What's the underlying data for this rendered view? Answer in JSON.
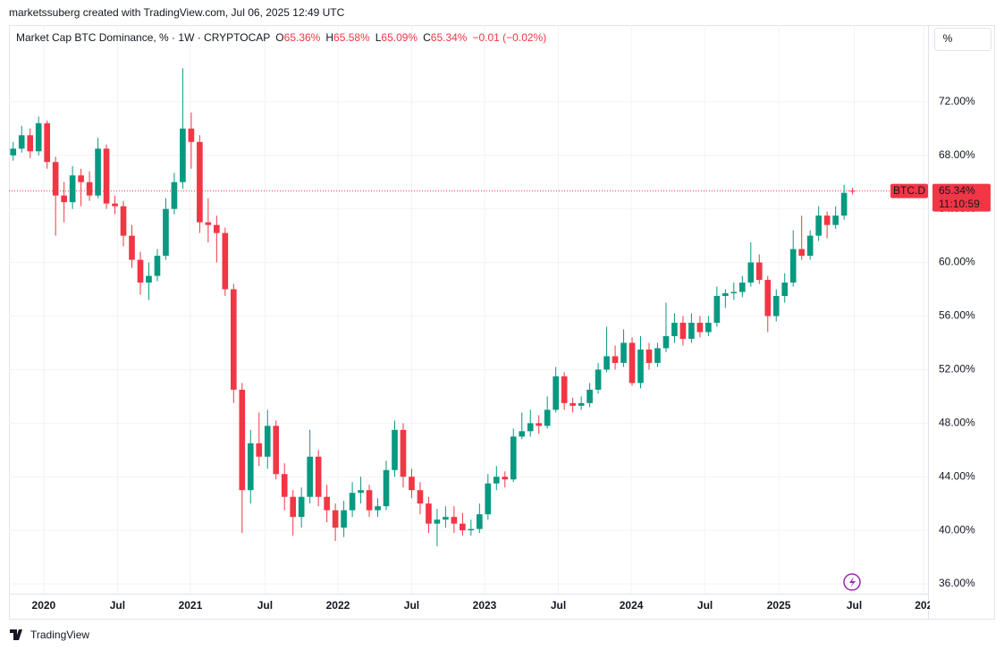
{
  "chart_data": {
    "type": "candlestick",
    "credit": "marketssuberg created with TradingView.com, Jul 06, 2025 12:49 UTC",
    "title": "Market Cap BTC Dominance, % · 1W · CRYPTOCAP",
    "ohlc_legend": {
      "open_label": "O",
      "open": "65.36%",
      "high_label": "H",
      "high": "65.58%",
      "low_label": "L",
      "low": "65.09%",
      "close_label": "C",
      "close": "65.34%",
      "change": "−0.01 (−0.02%)"
    },
    "scale_button": "%",
    "brand": "TradingView",
    "up_color": "#089981",
    "down_color": "#f23645",
    "ohlc": [
      [
        68.0,
        69.0,
        67.6,
        68.5
      ],
      [
        68.5,
        70.2,
        68.2,
        69.5
      ],
      [
        69.5,
        70.0,
        67.8,
        68.3
      ],
      [
        68.3,
        70.9,
        68.0,
        70.4
      ],
      [
        70.4,
        70.6,
        67.0,
        67.5
      ],
      [
        67.5,
        67.9,
        62.0,
        65.0
      ],
      [
        65.0,
        66.0,
        63.0,
        64.5
      ],
      [
        64.5,
        67.2,
        64.0,
        66.5
      ],
      [
        66.5,
        67.0,
        64.2,
        66.0
      ],
      [
        66.0,
        66.8,
        64.6,
        65.0
      ],
      [
        65.0,
        69.3,
        64.8,
        68.5
      ],
      [
        68.5,
        68.8,
        64.0,
        64.4
      ],
      [
        64.4,
        65.0,
        63.6,
        64.2
      ],
      [
        64.2,
        64.6,
        61.2,
        62.0
      ],
      [
        62.0,
        62.8,
        59.6,
        60.2
      ],
      [
        60.2,
        60.8,
        57.6,
        58.5
      ],
      [
        58.5,
        60.0,
        57.2,
        59.0
      ],
      [
        59.0,
        61.0,
        58.6,
        60.5
      ],
      [
        60.5,
        64.8,
        60.2,
        64.0
      ],
      [
        64.0,
        66.7,
        63.6,
        66.0
      ],
      [
        66.0,
        74.5,
        65.5,
        70.0
      ],
      [
        70.0,
        71.2,
        67.0,
        69.0
      ],
      [
        69.0,
        69.5,
        62.2,
        63.0
      ],
      [
        63.0,
        64.8,
        61.5,
        62.8
      ],
      [
        62.8,
        63.5,
        60.0,
        62.2
      ],
      [
        62.2,
        62.6,
        57.5,
        58.0
      ],
      [
        58.0,
        58.4,
        49.5,
        50.5
      ],
      [
        50.5,
        51.0,
        39.8,
        43.0
      ],
      [
        43.0,
        47.5,
        42.0,
        46.5
      ],
      [
        46.5,
        48.8,
        44.8,
        45.5
      ],
      [
        45.5,
        49.0,
        44.6,
        47.8
      ],
      [
        47.8,
        48.2,
        43.8,
        44.2
      ],
      [
        44.2,
        45.0,
        41.5,
        42.5
      ],
      [
        42.5,
        43.0,
        39.6,
        41.0
      ],
      [
        41.0,
        43.2,
        40.2,
        42.5
      ],
      [
        42.5,
        47.5,
        42.0,
        45.5
      ],
      [
        45.5,
        46.0,
        41.8,
        42.5
      ],
      [
        42.5,
        43.4,
        40.6,
        41.5
      ],
      [
        41.5,
        42.0,
        39.2,
        40.2
      ],
      [
        40.2,
        42.2,
        39.5,
        41.5
      ],
      [
        41.5,
        43.6,
        41.0,
        42.8
      ],
      [
        42.8,
        44.0,
        42.0,
        43.0
      ],
      [
        43.0,
        43.4,
        41.0,
        41.5
      ],
      [
        41.5,
        42.4,
        41.0,
        41.8
      ],
      [
        41.8,
        45.2,
        41.5,
        44.5
      ],
      [
        44.5,
        48.2,
        44.0,
        47.5
      ],
      [
        47.5,
        48.0,
        43.2,
        44.0
      ],
      [
        44.0,
        44.6,
        42.4,
        43.0
      ],
      [
        43.0,
        43.6,
        41.2,
        42.0
      ],
      [
        42.0,
        42.5,
        39.8,
        40.5
      ],
      [
        40.5,
        41.6,
        38.8,
        40.8
      ],
      [
        40.8,
        41.8,
        40.2,
        41.0
      ],
      [
        41.0,
        41.8,
        39.8,
        40.5
      ],
      [
        40.5,
        41.3,
        39.6,
        40.0
      ],
      [
        40.0,
        40.8,
        39.6,
        40.1
      ],
      [
        40.1,
        42.0,
        39.8,
        41.2
      ],
      [
        41.2,
        44.2,
        40.8,
        43.5
      ],
      [
        43.5,
        44.8,
        43.0,
        44.0
      ],
      [
        44.0,
        44.4,
        43.2,
        43.8
      ],
      [
        43.8,
        47.6,
        43.6,
        47.0
      ],
      [
        47.0,
        48.8,
        46.8,
        47.4
      ],
      [
        47.4,
        49.0,
        47.0,
        48.0
      ],
      [
        48.0,
        48.6,
        47.2,
        47.8
      ],
      [
        47.8,
        50.0,
        47.6,
        49.0
      ],
      [
        49.0,
        52.2,
        48.8,
        51.5
      ],
      [
        51.5,
        51.8,
        49.0,
        49.5
      ],
      [
        49.5,
        49.9,
        48.8,
        49.3
      ],
      [
        49.3,
        50.0,
        49.0,
        49.5
      ],
      [
        49.5,
        51.0,
        49.2,
        50.5
      ],
      [
        50.5,
        52.5,
        50.2,
        52.0
      ],
      [
        52.0,
        55.2,
        51.8,
        53.0
      ],
      [
        53.0,
        53.8,
        52.0,
        52.5
      ],
      [
        52.5,
        55.0,
        52.2,
        54.0
      ],
      [
        54.0,
        54.4,
        50.8,
        51.0
      ],
      [
        51.0,
        54.5,
        50.6,
        53.5
      ],
      [
        53.5,
        54.0,
        52.0,
        52.5
      ],
      [
        52.5,
        54.0,
        52.2,
        53.6
      ],
      [
        53.6,
        57.0,
        53.3,
        54.5
      ],
      [
        54.5,
        56.2,
        54.0,
        55.5
      ],
      [
        55.5,
        56.0,
        53.8,
        54.3
      ],
      [
        54.3,
        56.2,
        54.0,
        55.5
      ],
      [
        55.5,
        56.0,
        54.4,
        54.8
      ],
      [
        54.8,
        56.0,
        54.5,
        55.5
      ],
      [
        55.5,
        58.2,
        55.2,
        57.5
      ],
      [
        57.5,
        58.0,
        56.6,
        57.7
      ],
      [
        57.7,
        58.5,
        57.2,
        57.8
      ],
      [
        57.8,
        59.0,
        57.4,
        58.5
      ],
      [
        58.5,
        61.5,
        58.2,
        60.0
      ],
      [
        60.0,
        60.6,
        58.4,
        58.7
      ],
      [
        58.7,
        59.0,
        54.8,
        56.0
      ],
      [
        56.0,
        58.0,
        55.6,
        57.5
      ],
      [
        57.5,
        59.2,
        57.0,
        58.5
      ],
      [
        58.5,
        62.4,
        58.2,
        61.0
      ],
      [
        61.0,
        63.5,
        60.2,
        60.5
      ],
      [
        60.5,
        62.4,
        60.2,
        62.0
      ],
      [
        62.0,
        64.2,
        61.6,
        63.5
      ],
      [
        63.5,
        63.8,
        61.8,
        62.8
      ],
      [
        62.8,
        64.2,
        62.5,
        63.5
      ],
      [
        63.5,
        65.8,
        63.2,
        65.2
      ],
      [
        65.36,
        65.58,
        65.09,
        65.34
      ]
    ],
    "xlim": [
      -0.5,
      107.9
    ],
    "xticks": [
      {
        "value": 3.6,
        "label": "2020"
      },
      {
        "value": 12.3,
        "label": "Jul"
      },
      {
        "value": 20.9,
        "label": "2021"
      },
      {
        "value": 29.7,
        "label": "Jul"
      },
      {
        "value": 38.3,
        "label": "2022"
      },
      {
        "value": 47.0,
        "label": "Jul"
      },
      {
        "value": 55.6,
        "label": "2023"
      },
      {
        "value": 64.3,
        "label": "Jul"
      },
      {
        "value": 72.9,
        "label": "2024"
      },
      {
        "value": 81.6,
        "label": "Jul"
      },
      {
        "value": 90.3,
        "label": "2025"
      },
      {
        "value": 99.2,
        "label": "Jul"
      },
      {
        "value": 107.4,
        "label": "202"
      }
    ],
    "ylim": [
      35.27,
      77.73
    ],
    "yticks": [
      {
        "value": 36,
        "label": "36.00%"
      },
      {
        "value": 40,
        "label": "40.00%"
      },
      {
        "value": 44,
        "label": "44.00%"
      },
      {
        "value": 48,
        "label": "48.00%"
      },
      {
        "value": 52,
        "label": "52.00%"
      },
      {
        "value": 56,
        "label": "56.00%"
      },
      {
        "value": 60,
        "label": "60.00%"
      },
      {
        "value": 64,
        "label": "64.00%"
      },
      {
        "value": 68,
        "label": "68.00%"
      },
      {
        "value": 72,
        "label": "72.00%"
      }
    ],
    "grid": true,
    "price_line": {
      "value": 65.34,
      "symbol": "BTC.D",
      "label": "65.34%",
      "countdown": "11:10:59",
      "color": "#f23645"
    }
  }
}
